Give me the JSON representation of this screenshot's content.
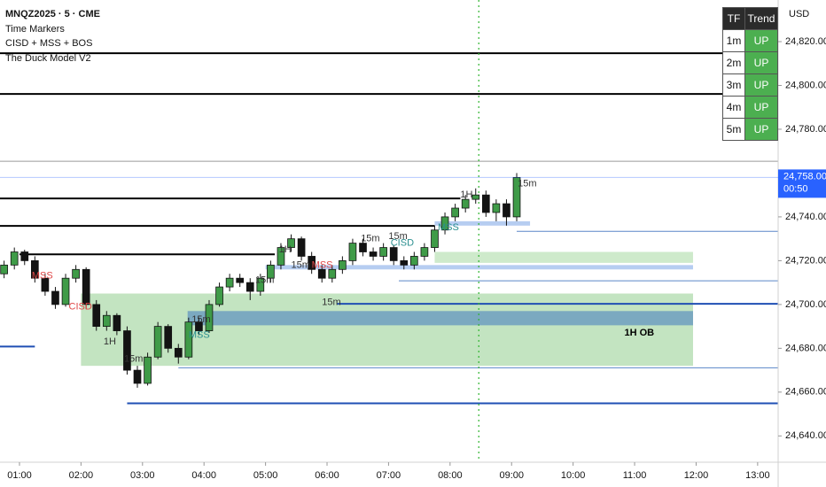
{
  "header": {
    "symbol": "MNQZ2025 · 5 · CME",
    "indicators": [
      "Time Markers",
      "CISD + MSS + BOS",
      "The Duck Model V2"
    ],
    "currency": "USD"
  },
  "trend_table": {
    "columns": [
      "TF",
      "Trend"
    ],
    "rows": [
      [
        "1m",
        "UP"
      ],
      [
        "2m",
        "UP"
      ],
      [
        "3m",
        "UP"
      ],
      [
        "4m",
        "UP"
      ],
      [
        "5m",
        "UP"
      ]
    ]
  },
  "chart_data": {
    "type": "candlestick",
    "up_color": "#3f9b48",
    "down_color": "#131313",
    "x": [
      45,
      55,
      65,
      75,
      85,
      95,
      105,
      115,
      125,
      135,
      145,
      155,
      165,
      175,
      185,
      195,
      205,
      215,
      225,
      235,
      245,
      255,
      265,
      275,
      285,
      295,
      305,
      315,
      325,
      335,
      345,
      355,
      365,
      375,
      385,
      395,
      405,
      415,
      425,
      435,
      445,
      455,
      465,
      475,
      485,
      495,
      505,
      515,
      525,
      535,
      545
    ],
    "ohlc": [
      [
        24714,
        24720,
        24712,
        24718
      ],
      [
        24718,
        24726,
        24716,
        24724
      ],
      [
        24724,
        24725,
        24718,
        24720
      ],
      [
        24720,
        24722,
        24710,
        24712
      ],
      [
        24712,
        24714,
        24704,
        24706
      ],
      [
        24706,
        24708,
        24698,
        24700
      ],
      [
        24700,
        24714,
        24699,
        24712
      ],
      [
        24712,
        24718,
        24710,
        24716
      ],
      [
        24716,
        24717,
        24698,
        24700
      ],
      [
        24700,
        24702,
        24688,
        24690
      ],
      [
        24690,
        24697,
        24688,
        24695
      ],
      [
        24695,
        24696,
        24686,
        24688
      ],
      [
        24688,
        24690,
        24668,
        24670
      ],
      [
        24670,
        24672,
        24662,
        24664
      ],
      [
        24664,
        24678,
        24663,
        24676
      ],
      [
        24676,
        24692,
        24675,
        24690
      ],
      [
        24690,
        24691,
        24678,
        24680
      ],
      [
        24680,
        24682,
        24673,
        24676
      ],
      [
        24676,
        24694,
        24675,
        24692
      ],
      [
        24692,
        24694,
        24686,
        24688
      ],
      [
        24688,
        24702,
        24687,
        24700
      ],
      [
        24700,
        24710,
        24699,
        24708
      ],
      [
        24708,
        24714,
        24706,
        24712
      ],
      [
        24712,
        24714,
        24708,
        24710
      ],
      [
        24710,
        24712,
        24702,
        24706
      ],
      [
        24706,
        24714,
        24704,
        24712
      ],
      [
        24712,
        24720,
        24710,
        24718
      ],
      [
        24718,
        24728,
        24716,
        24726
      ],
      [
        24726,
        24732,
        24724,
        24730
      ],
      [
        24730,
        24731,
        24720,
        24722
      ],
      [
        24722,
        24724,
        24714,
        24716
      ],
      [
        24716,
        24718,
        24710,
        24712
      ],
      [
        24712,
        24718,
        24710,
        24716
      ],
      [
        24716,
        24722,
        24714,
        24720
      ],
      [
        24720,
        24730,
        24718,
        24728
      ],
      [
        24728,
        24730,
        24722,
        24724
      ],
      [
        24724,
        24726,
        24720,
        24722
      ],
      [
        24722,
        24728,
        24720,
        24726
      ],
      [
        24726,
        24727,
        24718,
        24720
      ],
      [
        24720,
        24722,
        24716,
        24718
      ],
      [
        24718,
        24724,
        24716,
        24722
      ],
      [
        24722,
        24728,
        24720,
        24726
      ],
      [
        24726,
        24736,
        24724,
        24734
      ],
      [
        24734,
        24742,
        24732,
        24740
      ],
      [
        24740,
        24746,
        24738,
        24744
      ],
      [
        24744,
        24750,
        24742,
        24748
      ],
      [
        24748,
        24753,
        24746,
        24750
      ],
      [
        24750,
        24752,
        24740,
        24742
      ],
      [
        24742,
        24748,
        24738,
        24746
      ],
      [
        24746,
        24748,
        24736,
        24740
      ],
      [
        24740,
        24760,
        24738,
        24758
      ]
    ],
    "xlim": [
      41,
      800
    ],
    "ylim": [
      24628,
      24839
    ],
    "xticks": [
      {
        "value": 60,
        "label": "01:00"
      },
      {
        "value": 120,
        "label": "02:00"
      },
      {
        "value": 180,
        "label": "03:00"
      },
      {
        "value": 240,
        "label": "04:00"
      },
      {
        "value": 300,
        "label": "05:00"
      },
      {
        "value": 360,
        "label": "06:00"
      },
      {
        "value": 420,
        "label": "07:00"
      },
      {
        "value": 480,
        "label": "08:00"
      },
      {
        "value": 540,
        "label": "09:00"
      },
      {
        "value": 600,
        "label": "10:00"
      },
      {
        "value": 660,
        "label": "11:00"
      },
      {
        "value": 720,
        "label": "12:00"
      },
      {
        "value": 780,
        "label": "13:00"
      }
    ],
    "yticks": [
      {
        "value": 24820,
        "label": "24,820.00"
      },
      {
        "value": 24800,
        "label": "24,800.00"
      },
      {
        "value": 24780,
        "label": "24,780.00"
      },
      {
        "value": 24740,
        "label": "24,740.00"
      },
      {
        "value": 24720,
        "label": "24,720.00"
      },
      {
        "value": 24700,
        "label": "24,700.00"
      },
      {
        "value": 24680,
        "label": "24,680.00"
      },
      {
        "value": 24660,
        "label": "24,660.00"
      },
      {
        "value": 24640,
        "label": "24,640.00"
      }
    ],
    "grid": false,
    "zones": [
      {
        "y": [
          24672,
          24705
        ],
        "x": [
          120,
          717
        ],
        "color": "#b9dfb6"
      },
      {
        "y": [
          24719,
          24724
        ],
        "x": [
          465,
          717
        ],
        "color": "#c5e6c2"
      },
      {
        "y": [
          24690.5,
          24697
        ],
        "x": [
          224,
          717
        ],
        "color": "#6f9fc0"
      },
      {
        "y": [
          24716,
          24718
        ],
        "x": [
          300,
          717
        ],
        "color": "#a9c4ee"
      },
      {
        "y": [
          24736,
          24738
        ],
        "x": [
          465,
          558
        ],
        "color": "#a9c4ee"
      }
    ],
    "levels": [
      {
        "value": 24814.7,
        "x": [
          41,
          800
        ],
        "color": "#000000",
        "weight": "bold"
      },
      {
        "value": 24796.1,
        "x": [
          41,
          800
        ],
        "color": "#000000",
        "weight": "bold"
      },
      {
        "value": 24765.4,
        "x": [
          41,
          800
        ],
        "color": "#9a9a9a",
        "weight": "thin"
      },
      {
        "value": 24748.4,
        "x": [
          41,
          490
        ],
        "color": "#000000",
        "weight": "bold"
      },
      {
        "value": 24735.9,
        "x": [
          41,
          465
        ],
        "color": "#000000",
        "weight": "bold"
      },
      {
        "value": 24722.9,
        "x": [
          60,
          309
        ],
        "color": "#000000",
        "weight": "bold"
      },
      {
        "value": 24733.4,
        "x": [
          545,
          800
        ],
        "color": "#5a86c8",
        "weight": "thin"
      },
      {
        "value": 24710.8,
        "x": [
          430,
          800
        ],
        "color": "#5a86c8",
        "weight": "thin"
      },
      {
        "value": 24700.3,
        "x": [
          370,
          800
        ],
        "color": "#1f4fb4",
        "weight": "bold"
      },
      {
        "value": 24680.8,
        "x": [
          41,
          75
        ],
        "color": "#1f4fb4",
        "weight": "bold"
      },
      {
        "value": 24671.1,
        "x": [
          215,
          800
        ],
        "color": "#5a86c8",
        "weight": "thin"
      },
      {
        "value": 24654.9,
        "x": [
          165,
          800
        ],
        "color": "#1f4fb4",
        "weight": "bold"
      }
    ],
    "vline": {
      "x": 508,
      "color": "#2fb42f"
    },
    "annotations": [
      {
        "text": "1H OB",
        "x": 650,
        "y": 24687,
        "color": "#000000",
        "size": "large"
      },
      {
        "text": "MSS",
        "x": 72,
        "y": 24713,
        "color": "#e04848"
      },
      {
        "text": "CISD",
        "x": 108,
        "y": 24699,
        "color": "#e04848"
      },
      {
        "text": "1H",
        "x": 142,
        "y": 24683,
        "color": "#333333"
      },
      {
        "text": "15m",
        "x": 162,
        "y": 24675,
        "color": "#333333"
      },
      {
        "text": "MSS",
        "x": 225,
        "y": 24686,
        "color": "#2a8f8f"
      },
      {
        "text": "15m",
        "x": 228,
        "y": 24693,
        "color": "#333333"
      },
      {
        "text": "15m",
        "x": 290,
        "y": 24711,
        "color": "#333333"
      },
      {
        "text": "1H",
        "x": 313,
        "y": 24725,
        "color": "#333333"
      },
      {
        "text": "15m",
        "x": 325,
        "y": 24718,
        "color": "#333333"
      },
      {
        "text": "MSS",
        "x": 345,
        "y": 24718,
        "color": "#e04848"
      },
      {
        "text": "15m",
        "x": 355,
        "y": 24701,
        "color": "#333333"
      },
      {
        "text": "15m",
        "x": 393,
        "y": 24730,
        "color": "#333333"
      },
      {
        "text": "15m",
        "x": 420,
        "y": 24731,
        "color": "#333333"
      },
      {
        "text": "CISD",
        "x": 422,
        "y": 24728,
        "color": "#2a8f8f"
      },
      {
        "text": "MSS",
        "x": 468,
        "y": 24735,
        "color": "#2a8f8f"
      },
      {
        "text": "1H",
        "x": 490,
        "y": 24750,
        "color": "#333333"
      },
      {
        "text": "15m",
        "x": 546,
        "y": 24755,
        "color": "#333333"
      }
    ],
    "last": {
      "value": 24758,
      "label": "24,758.00",
      "countdown": "00:50",
      "color": "#2962ff"
    }
  }
}
